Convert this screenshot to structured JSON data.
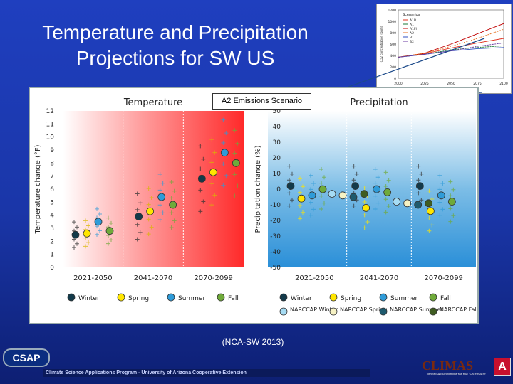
{
  "slide": {
    "title_line1": "Temperature and Precipitation",
    "title_line2": "Projections for SW US",
    "scenario_label": "A2 Emissions Scenario",
    "source": "(NCA-SW 2013)",
    "footer_text": "Climate Science Applications Program - University of Arizona Cooperative Extension",
    "csap_logo": "CSAP",
    "climas_logo": "CLIMAS",
    "climas_tagline": "Climate Assessment for the Southwest",
    "ua_logo": "A"
  },
  "colors": {
    "winter": "#133a4a",
    "spring": "#ffe600",
    "summer": "#2f9bd8",
    "fall": "#6faa3a",
    "narccap_winter": "#a6dcf4",
    "narccap_spring": "#f6f2c4",
    "narccap_summer": "#1e5a6e",
    "narccap_fall": "#3f5c22"
  },
  "chart_data": [
    {
      "type": "scatter",
      "title": "Temperature",
      "ylabel": "Temperature change (°F)",
      "ylim": [
        0,
        12
      ],
      "yticks": [
        "0",
        "1",
        "2",
        "3",
        "4",
        "5",
        "6",
        "7",
        "8",
        "9",
        "10",
        "11",
        "12"
      ],
      "categories": [
        "2021-2050",
        "2041-2070",
        "2070-2099"
      ],
      "series": [
        {
          "name": "Winter",
          "values": [
            2.5,
            3.9,
            6.8
          ]
        },
        {
          "name": "Spring",
          "values": [
            2.6,
            4.3,
            7.3
          ]
        },
        {
          "name": "Summer",
          "values": [
            3.5,
            5.4,
            8.8
          ]
        },
        {
          "name": "Fall",
          "values": [
            2.8,
            4.8,
            8.0
          ]
        }
      ]
    },
    {
      "type": "scatter",
      "title": "Precipitation",
      "ylabel": "Precipitation change (%)",
      "ylim": [
        -50,
        50
      ],
      "yticks": [
        "50",
        "40",
        "30",
        "20",
        "10",
        "0",
        "-10",
        "-20",
        "-30",
        "-40",
        "-50"
      ],
      "categories": [
        "2021-2050",
        "2041-2070",
        "2070-2099"
      ],
      "series": [
        {
          "name": "Winter",
          "values": [
            2,
            2,
            2
          ]
        },
        {
          "name": "Spring",
          "values": [
            -6,
            -12,
            -14
          ]
        },
        {
          "name": "Summer",
          "values": [
            -4,
            0,
            -4
          ]
        },
        {
          "name": "Fall",
          "values": [
            0,
            -2,
            -8
          ]
        },
        {
          "name": "NARCCAP Winter",
          "values": [
            -3,
            -8
          ]
        },
        {
          "name": "NARCCAP Spring",
          "values": [
            -4,
            -9
          ]
        },
        {
          "name": "NARCCAP Summer",
          "values": [
            -5,
            -10
          ]
        },
        {
          "name": "NARCCAP Fall",
          "values": [
            -3,
            -9
          ]
        }
      ]
    }
  ],
  "legend": {
    "temperature": [
      "Winter",
      "Spring",
      "Summer",
      "Fall"
    ],
    "precipitation": [
      {
        "label": "Winter",
        "color": "winter"
      },
      {
        "label": "Spring",
        "color": "spring"
      },
      {
        "label": "Summer",
        "color": "summer"
      },
      {
        "label": "Fall",
        "color": "fall"
      },
      {
        "label": "NARCCAP Winter",
        "color": "narccap_winter"
      },
      {
        "label": "NARCCAP Spring",
        "color": "narccap_spring"
      },
      {
        "label": "NARCCAP Summer",
        "color": "narccap_summer"
      },
      {
        "label": "NARCCAP Fall",
        "color": "narccap_fall"
      }
    ]
  },
  "inset_chart": {
    "type": "line",
    "ylabel": "CO2 concentration (ppm)",
    "yticks": [
      "1200",
      "1000",
      "800",
      "600",
      "400",
      "200",
      "0"
    ],
    "xticks": [
      "2000",
      "2025",
      "2050",
      "2075",
      "2100"
    ],
    "legend_title": "Scenarios",
    "series": [
      {
        "name": "A1B",
        "values": [
          370,
          430,
          530,
          620,
          700
        ],
        "color": "#e0301e"
      },
      {
        "name": "A1T",
        "values": [
          370,
          420,
          500,
          540,
          570
        ],
        "color": "#1a7a3a"
      },
      {
        "name": "A1FI",
        "values": [
          370,
          440,
          600,
          780,
          960
        ],
        "color": "#c00000"
      },
      {
        "name": "A2",
        "values": [
          370,
          440,
          560,
          700,
          860
        ],
        "color": "#e67020"
      },
      {
        "name": "B1",
        "values": [
          370,
          420,
          480,
          520,
          540
        ],
        "color": "#3050c0"
      },
      {
        "name": "B2",
        "values": [
          370,
          420,
          480,
          560,
          620
        ],
        "color": "#6a3aa0"
      }
    ]
  }
}
